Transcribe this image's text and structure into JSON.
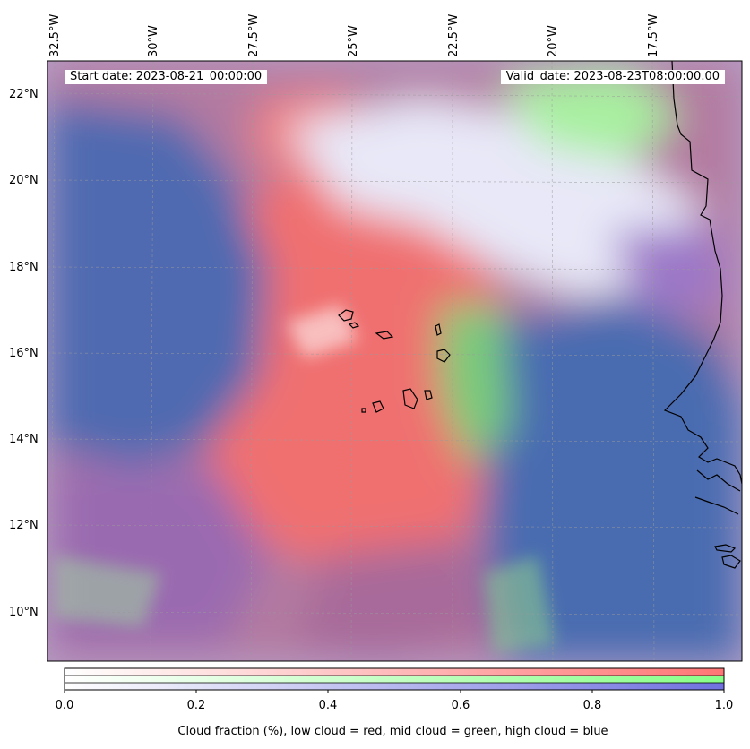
{
  "header": {
    "start_date": "Start date: 2023-08-21_00:00:00",
    "valid_date": "Valid_date: 2023-08-23T08:00:00.00"
  },
  "longitude_labels": [
    "32.5°W",
    "30°W",
    "27.5°W",
    "25°W",
    "22.5°W",
    "20°W",
    "17.5°W"
  ],
  "latitude_labels": [
    "22°N",
    "20°N",
    "18°N",
    "16°N",
    "14°N",
    "12°N",
    "10°N"
  ],
  "colorbar": {
    "ticks": [
      "0.0",
      "0.2",
      "0.4",
      "0.6",
      "0.8",
      "1.0"
    ],
    "label": "Cloud fraction (%), low cloud = red, mid cloud = green, high cloud = blue",
    "colors": {
      "low": "#ff7f7f",
      "mid": "#8fff8f",
      "high": "#7f7fe6"
    }
  },
  "map": {
    "region": "Eastern tropical Atlantic, Cape Verde Islands and West African coast",
    "layers": [
      "low cloud",
      "mid cloud",
      "high cloud"
    ],
    "gridlines": true
  }
}
